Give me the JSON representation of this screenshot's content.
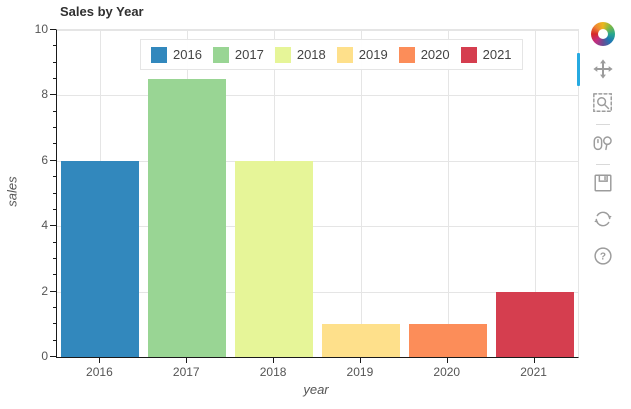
{
  "title": "Sales by Year",
  "chart_data": {
    "type": "bar",
    "title": "Sales by Year",
    "categories": [
      "2016",
      "2017",
      "2018",
      "2019",
      "2020",
      "2021"
    ],
    "values": [
      6,
      8.5,
      6,
      1,
      1,
      2
    ],
    "colors": [
      "#3288bd",
      "#99d594",
      "#e6f598",
      "#fee08b",
      "#fc8d59",
      "#d53e4f"
    ],
    "xlabel": "year",
    "ylabel": "sales",
    "ylim": [
      0,
      10
    ],
    "yticks": [
      0,
      2,
      4,
      6,
      8,
      10
    ],
    "minor_tick_step": 0.5,
    "grid": true,
    "legend_position": "top-center"
  },
  "legend": {
    "items": [
      {
        "label": "2016",
        "color": "#3288bd"
      },
      {
        "label": "2017",
        "color": "#99d594"
      },
      {
        "label": "2018",
        "color": "#e6f598"
      },
      {
        "label": "2019",
        "color": "#fee08b"
      },
      {
        "label": "2020",
        "color": "#fc8d59"
      },
      {
        "label": "2021",
        "color": "#d53e4f"
      }
    ]
  },
  "toolbar": {
    "logo_icon": "bokeh-logo",
    "active_tool": "pan",
    "active_color": "#26aae1",
    "tools": [
      {
        "name": "pan",
        "icon": "move-arrows-icon",
        "active": true
      },
      {
        "name": "box-zoom",
        "icon": "magnifier-dashed-box-icon",
        "active": false
      },
      {
        "name": "wheel-zoom",
        "icon": "mouse-wheel-magnifier-icon",
        "active": false
      },
      {
        "name": "save",
        "icon": "floppy-disk-icon",
        "active": false
      },
      {
        "name": "reset",
        "icon": "circular-arrows-icon",
        "active": false
      },
      {
        "name": "help",
        "icon": "question-mark-circle-icon",
        "active": false
      }
    ]
  }
}
